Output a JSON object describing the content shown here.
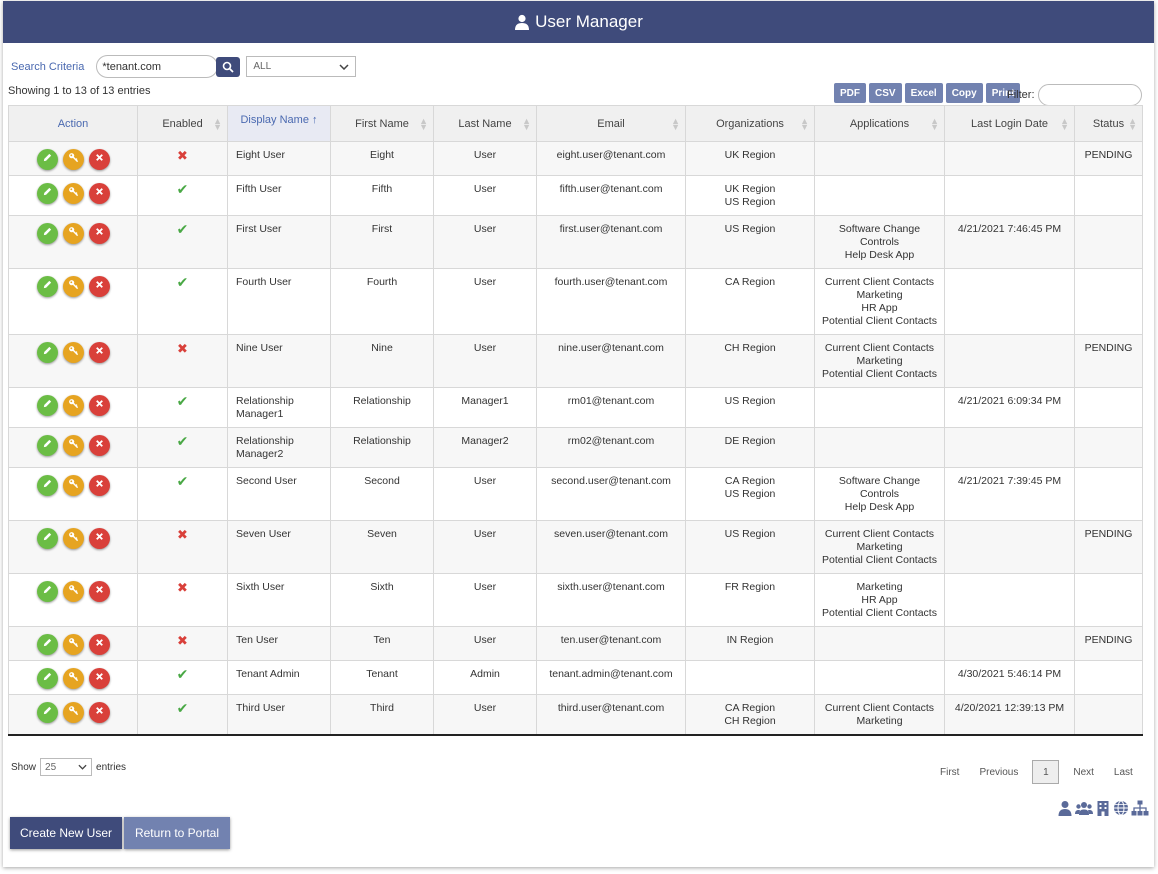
{
  "header": {
    "title": "User Manager",
    "icon": "user-icon"
  },
  "search": {
    "label": "Search Criteria",
    "value": "*tenant.com",
    "button_icon": "search-icon",
    "select_value": "ALL"
  },
  "info": {
    "showing": "Showing 1 to 13 of 13 entries"
  },
  "exports": [
    "PDF",
    "CSV",
    "Excel",
    "Copy",
    "Print"
  ],
  "filter": {
    "label": "Filter:",
    "value": ""
  },
  "columns": [
    "Action",
    "Enabled",
    "Display Name",
    "First Name",
    "Last Name",
    "Email",
    "Organizations",
    "Applications",
    "Last Login Date",
    "Status"
  ],
  "rows": [
    {
      "enabled": false,
      "display": "Eight User",
      "first": "Eight",
      "last": "User",
      "email": "eight.user@tenant.com",
      "orgs": [
        "UK Region"
      ],
      "apps": [],
      "login": "",
      "status": "PENDING"
    },
    {
      "enabled": true,
      "display": "Fifth User",
      "first": "Fifth",
      "last": "User",
      "email": "fifth.user@tenant.com",
      "orgs": [
        "UK Region",
        "US Region"
      ],
      "apps": [],
      "login": "",
      "status": ""
    },
    {
      "enabled": true,
      "display": "First User",
      "first": "First",
      "last": "User",
      "email": "first.user@tenant.com",
      "orgs": [
        "US Region"
      ],
      "apps": [
        "Software Change",
        "Controls",
        "Help Desk App"
      ],
      "login": "4/21/2021 7:46:45 PM",
      "status": ""
    },
    {
      "enabled": true,
      "display": "Fourth User",
      "first": "Fourth",
      "last": "User",
      "email": "fourth.user@tenant.com",
      "orgs": [
        "CA Region"
      ],
      "apps": [
        "Current Client Contacts",
        "Marketing",
        "HR App",
        "Potential Client Contacts"
      ],
      "login": "",
      "status": ""
    },
    {
      "enabled": false,
      "display": "Nine User",
      "first": "Nine",
      "last": "User",
      "email": "nine.user@tenant.com",
      "orgs": [
        "CH Region"
      ],
      "apps": [
        "Current Client Contacts",
        "Marketing",
        "Potential Client Contacts"
      ],
      "login": "",
      "status": "PENDING"
    },
    {
      "enabled": true,
      "display": "Relationship Manager1",
      "first": "Relationship",
      "last": "Manager1",
      "email": "rm01@tenant.com",
      "orgs": [
        "US Region"
      ],
      "apps": [],
      "login": "4/21/2021 6:09:34 PM",
      "status": ""
    },
    {
      "enabled": true,
      "display": "Relationship Manager2",
      "first": "Relationship",
      "last": "Manager2",
      "email": "rm02@tenant.com",
      "orgs": [
        "DE Region"
      ],
      "apps": [],
      "login": "",
      "status": ""
    },
    {
      "enabled": true,
      "display": "Second User",
      "first": "Second",
      "last": "User",
      "email": "second.user@tenant.com",
      "orgs": [
        "CA Region",
        "US Region"
      ],
      "apps": [
        "Software Change",
        "Controls",
        "Help Desk App"
      ],
      "login": "4/21/2021 7:39:45 PM",
      "status": ""
    },
    {
      "enabled": false,
      "display": "Seven User",
      "first": "Seven",
      "last": "User",
      "email": "seven.user@tenant.com",
      "orgs": [
        "US Region"
      ],
      "apps": [
        "Current Client Contacts",
        "Marketing",
        "Potential Client Contacts"
      ],
      "login": "",
      "status": "PENDING"
    },
    {
      "enabled": false,
      "display": "Sixth User",
      "first": "Sixth",
      "last": "User",
      "email": "sixth.user@tenant.com",
      "orgs": [
        "FR Region"
      ],
      "apps": [
        "Marketing",
        "HR App",
        "Potential Client Contacts"
      ],
      "login": "",
      "status": ""
    },
    {
      "enabled": false,
      "display": "Ten User",
      "first": "Ten",
      "last": "User",
      "email": "ten.user@tenant.com",
      "orgs": [
        "IN Region"
      ],
      "apps": [],
      "login": "",
      "status": "PENDING"
    },
    {
      "enabled": true,
      "display": "Tenant Admin",
      "first": "Tenant",
      "last": "Admin",
      "email": "tenant.admin@tenant.com",
      "orgs": [],
      "apps": [],
      "login": "4/30/2021 5:46:14 PM",
      "status": ""
    },
    {
      "enabled": true,
      "display": "Third User",
      "first": "Third",
      "last": "User",
      "email": "third.user@tenant.com",
      "orgs": [
        "CA Region",
        "CH Region"
      ],
      "apps": [
        "Current Client Contacts",
        "Marketing"
      ],
      "login": "4/20/2021 12:39:13 PM",
      "status": ""
    }
  ],
  "length": {
    "show_label": "Show",
    "value": "25",
    "entries_label": "entries"
  },
  "pager": {
    "first": "First",
    "previous": "Previous",
    "current": "1",
    "next": "Next",
    "last": "Last"
  },
  "bottom_icons": [
    "user-icon",
    "users-icon",
    "building-icon",
    "globe-icon",
    "sitemap-icon"
  ],
  "buttons": {
    "create": "Create New User",
    "return": "Return to Portal"
  }
}
